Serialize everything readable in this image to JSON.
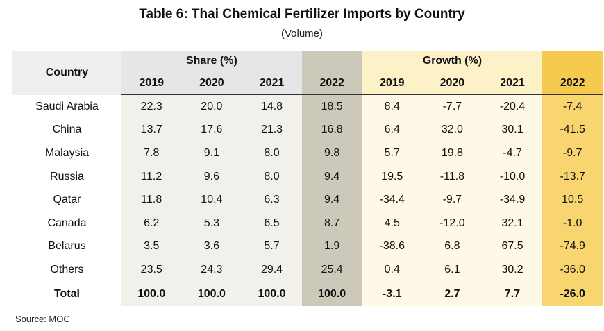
{
  "title": "Table 6: Thai Chemical Fertilizer Imports by Country",
  "subtitle": "(Volume)",
  "header": {
    "country": "Country",
    "share_group": "Share (%)",
    "growth_group": "Growth (%)",
    "years": [
      "2019",
      "2020",
      "2021",
      "2022"
    ]
  },
  "rows": [
    {
      "country": "Saudi Arabia",
      "share": [
        "22.3",
        "20.0",
        "14.8",
        "18.5"
      ],
      "growth": [
        "8.4",
        "-7.7",
        "-20.4",
        "-7.4"
      ]
    },
    {
      "country": "China",
      "share": [
        "13.7",
        "17.6",
        "21.3",
        "16.8"
      ],
      "growth": [
        "6.4",
        "32.0",
        "30.1",
        "-41.5"
      ]
    },
    {
      "country": "Malaysia",
      "share": [
        "7.8",
        "9.1",
        "8.0",
        "9.8"
      ],
      "growth": [
        "5.7",
        "19.8",
        "-4.7",
        "-9.7"
      ]
    },
    {
      "country": "Russia",
      "share": [
        "11.2",
        "9.6",
        "8.0",
        "9.4"
      ],
      "growth": [
        "19.5",
        "-11.8",
        "-10.0",
        "-13.7"
      ]
    },
    {
      "country": "Qatar",
      "share": [
        "11.8",
        "10.4",
        "6.3",
        "9.4"
      ],
      "growth": [
        "-34.4",
        "-9.7",
        "-34.9",
        "10.5"
      ]
    },
    {
      "country": "Canada",
      "share": [
        "6.2",
        "5.3",
        "6.5",
        "8.7"
      ],
      "growth": [
        "4.5",
        "-12.0",
        "32.1",
        "-1.0"
      ]
    },
    {
      "country": "Belarus",
      "share": [
        "3.5",
        "3.6",
        "5.7",
        "1.9"
      ],
      "growth": [
        "-38.6",
        "6.8",
        "67.5",
        "-74.9"
      ]
    },
    {
      "country": "Others",
      "share": [
        "23.5",
        "24.3",
        "29.4",
        "25.4"
      ],
      "growth": [
        "0.4",
        "6.1",
        "30.2",
        "-36.0"
      ]
    }
  ],
  "total": {
    "country": "Total",
    "share": [
      "100.0",
      "100.0",
      "100.0",
      "100.0"
    ],
    "growth": [
      "-3.1",
      "2.7",
      "7.7",
      "-26.0"
    ]
  },
  "source": "Source: MOC"
}
